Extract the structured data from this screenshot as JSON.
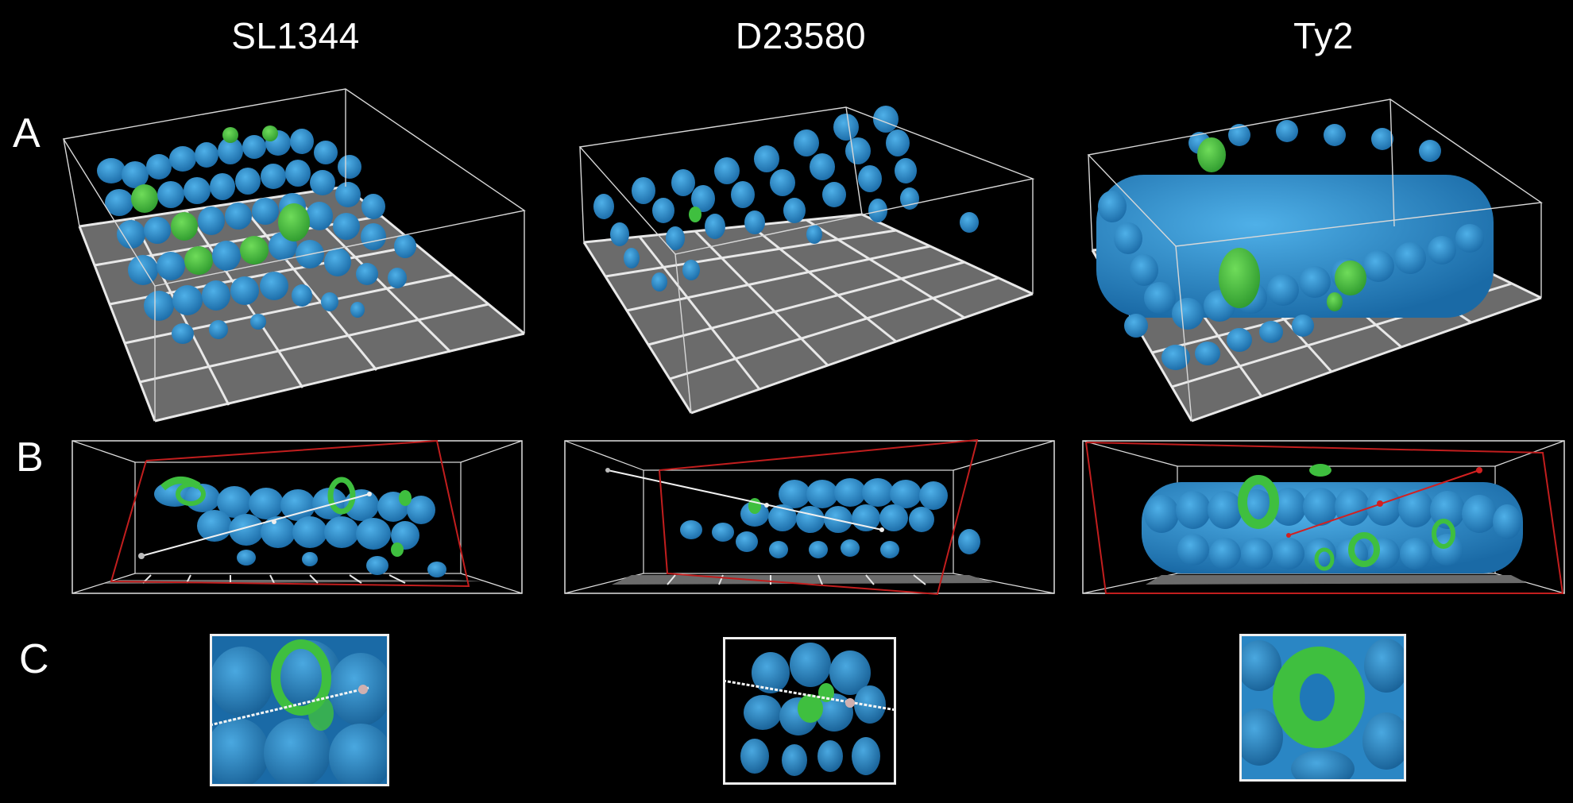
{
  "columns": {
    "col1": "SL1344",
    "col2": "D23580",
    "col3": "Ty2"
  },
  "rows": {
    "a": "A",
    "b": "B",
    "c": "C"
  },
  "colors": {
    "background": "#000000",
    "cell_blue": "#2a8fd0",
    "cell_blue_dark": "#1c6ea8",
    "infected_green": "#3fbf3f",
    "floor_gray": "#6b6b6b",
    "grid_white": "#e6e6e6",
    "clip_red": "#d32020"
  }
}
